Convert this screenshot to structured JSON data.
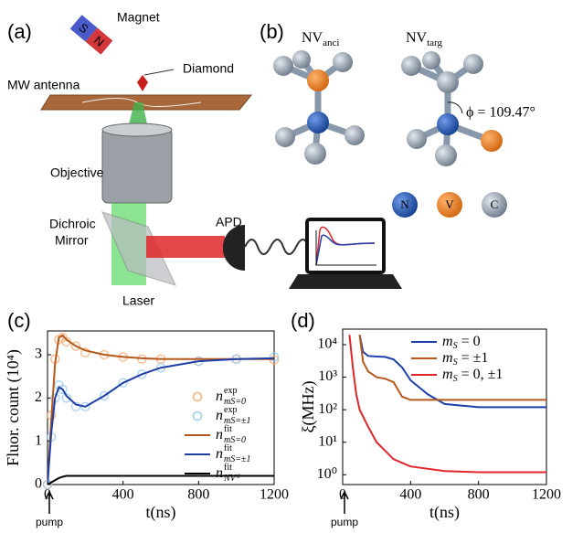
{
  "panels": {
    "a": "(a)",
    "b": "(b)",
    "c": "(c)",
    "d": "(d)"
  },
  "setup": {
    "magnet": "Magnet",
    "magnet_s": "S",
    "magnet_n": "N",
    "diamond": "Diamond",
    "antenna": "MW antenna",
    "objective": "Objective",
    "mirror": [
      "Dichroic",
      "Mirror"
    ],
    "laser": "Laser",
    "apd": "APD"
  },
  "molecules": {
    "anci": {
      "main": "NV",
      "sub": "anci"
    },
    "targ": {
      "main": "NV",
      "sub": "targ"
    },
    "angle": "ϕ = 109.47°",
    "atoms": [
      "N",
      "V",
      "C"
    ]
  },
  "chart_data": [
    {
      "type": "line",
      "xlabel": "t(ns)",
      "ylabel": "Fluor. count (10⁴)",
      "annotation": "pump",
      "x": [
        0,
        20,
        40,
        60,
        80,
        100,
        150,
        200,
        300,
        400,
        500,
        600,
        800,
        1000,
        1200
      ],
      "xlim": [
        0,
        1200
      ],
      "xticks": [
        0,
        400,
        800,
        1200
      ],
      "ylim": [
        0,
        3.55
      ],
      "yticks": [
        0,
        1,
        2,
        3
      ],
      "log": false,
      "legend": "lower right",
      "series": [
        {
          "name": "n",
          "sup": "exp",
          "sub": "mS=0",
          "color": "#f5b27a",
          "style": "markers",
          "values": [
            0,
            1.6,
            2.9,
            3.35,
            3.4,
            3.3,
            3.2,
            3.05,
            3.0,
            2.95,
            2.9,
            2.9,
            2.85,
            2.9,
            2.88
          ]
        },
        {
          "name": "n",
          "sup": "exp",
          "sub": "mS=±1",
          "color": "#9ccbf0",
          "style": "markers",
          "values": [
            0,
            1.1,
            2.0,
            2.3,
            2.2,
            2.0,
            1.8,
            1.8,
            2.05,
            2.35,
            2.55,
            2.7,
            2.85,
            2.9,
            2.95
          ]
        },
        {
          "name": "n",
          "sup": "fit",
          "sub": "mS=0",
          "color": "#b5581a",
          "style": "line",
          "values": [
            0,
            1.5,
            2.8,
            3.4,
            3.45,
            3.35,
            3.2,
            3.1,
            3.0,
            2.95,
            2.92,
            2.9,
            2.9,
            2.9,
            2.9
          ]
        },
        {
          "name": "n",
          "sup": "fit",
          "sub": "mS=±1",
          "color": "#1f3fa8",
          "style": "line",
          "values": [
            0,
            1.2,
            2.0,
            2.25,
            2.2,
            2.05,
            1.85,
            1.8,
            2.05,
            2.35,
            2.55,
            2.7,
            2.85,
            2.9,
            2.92
          ]
        },
        {
          "name": "n",
          "sup": "fit",
          "sub": "NV⁰",
          "color": "#000000",
          "style": "line",
          "values": [
            0,
            0.05,
            0.1,
            0.15,
            0.18,
            0.2,
            0.2,
            0.2,
            0.2,
            0.2,
            0.2,
            0.2,
            0.2,
            0.2,
            0.2
          ]
        }
      ]
    },
    {
      "type": "line",
      "xlabel": "t(ns)",
      "ylabel": "ξ(MHz)",
      "annotation": "pump",
      "xlim": [
        0,
        1200
      ],
      "xticks": [
        0,
        400,
        800,
        1200
      ],
      "ylim": [
        0.5,
        30000
      ],
      "log": true,
      "legend": "upper right",
      "yticks": [
        {
          "value": 1,
          "label": "10⁰"
        },
        {
          "value": 10,
          "label": "10¹"
        },
        {
          "value": 100,
          "label": "10²"
        },
        {
          "value": 1000,
          "label": "10³"
        },
        {
          "value": 10000,
          "label": "10⁴"
        }
      ],
      "series": [
        {
          "name": "m",
          "sub": "S",
          "rest": " = 0",
          "color": "#1f3fa8",
          "style": "line",
          "x": [
            100,
            120,
            150,
            200,
            250,
            300,
            350,
            400,
            500,
            600,
            800,
            1000,
            1200
          ],
          "values": [
            20000,
            6000,
            4500,
            4300,
            4200,
            3500,
            2000,
            800,
            300,
            150,
            120,
            120,
            120
          ]
        },
        {
          "name": "m",
          "sub": "S",
          "rest": " = ±1",
          "color": "#b5581a",
          "style": "line",
          "x": [
            100,
            120,
            150,
            200,
            250,
            300,
            350,
            400,
            500,
            600,
            800,
            1000,
            1200
          ],
          "values": [
            20000,
            3000,
            1500,
            1000,
            900,
            700,
            250,
            200,
            200,
            200,
            200,
            200,
            200
          ]
        },
        {
          "name": "m",
          "sub": "S",
          "rest": " = 0, ±1",
          "color": "#e0262a",
          "style": "line",
          "x": [
            40,
            60,
            80,
            100,
            150,
            200,
            300,
            400,
            600,
            800,
            1000,
            1200
          ],
          "values": [
            20000,
            2000,
            300,
            100,
            30,
            10,
            3,
            1.8,
            1.3,
            1.2,
            1.2,
            1.2
          ]
        }
      ]
    }
  ]
}
